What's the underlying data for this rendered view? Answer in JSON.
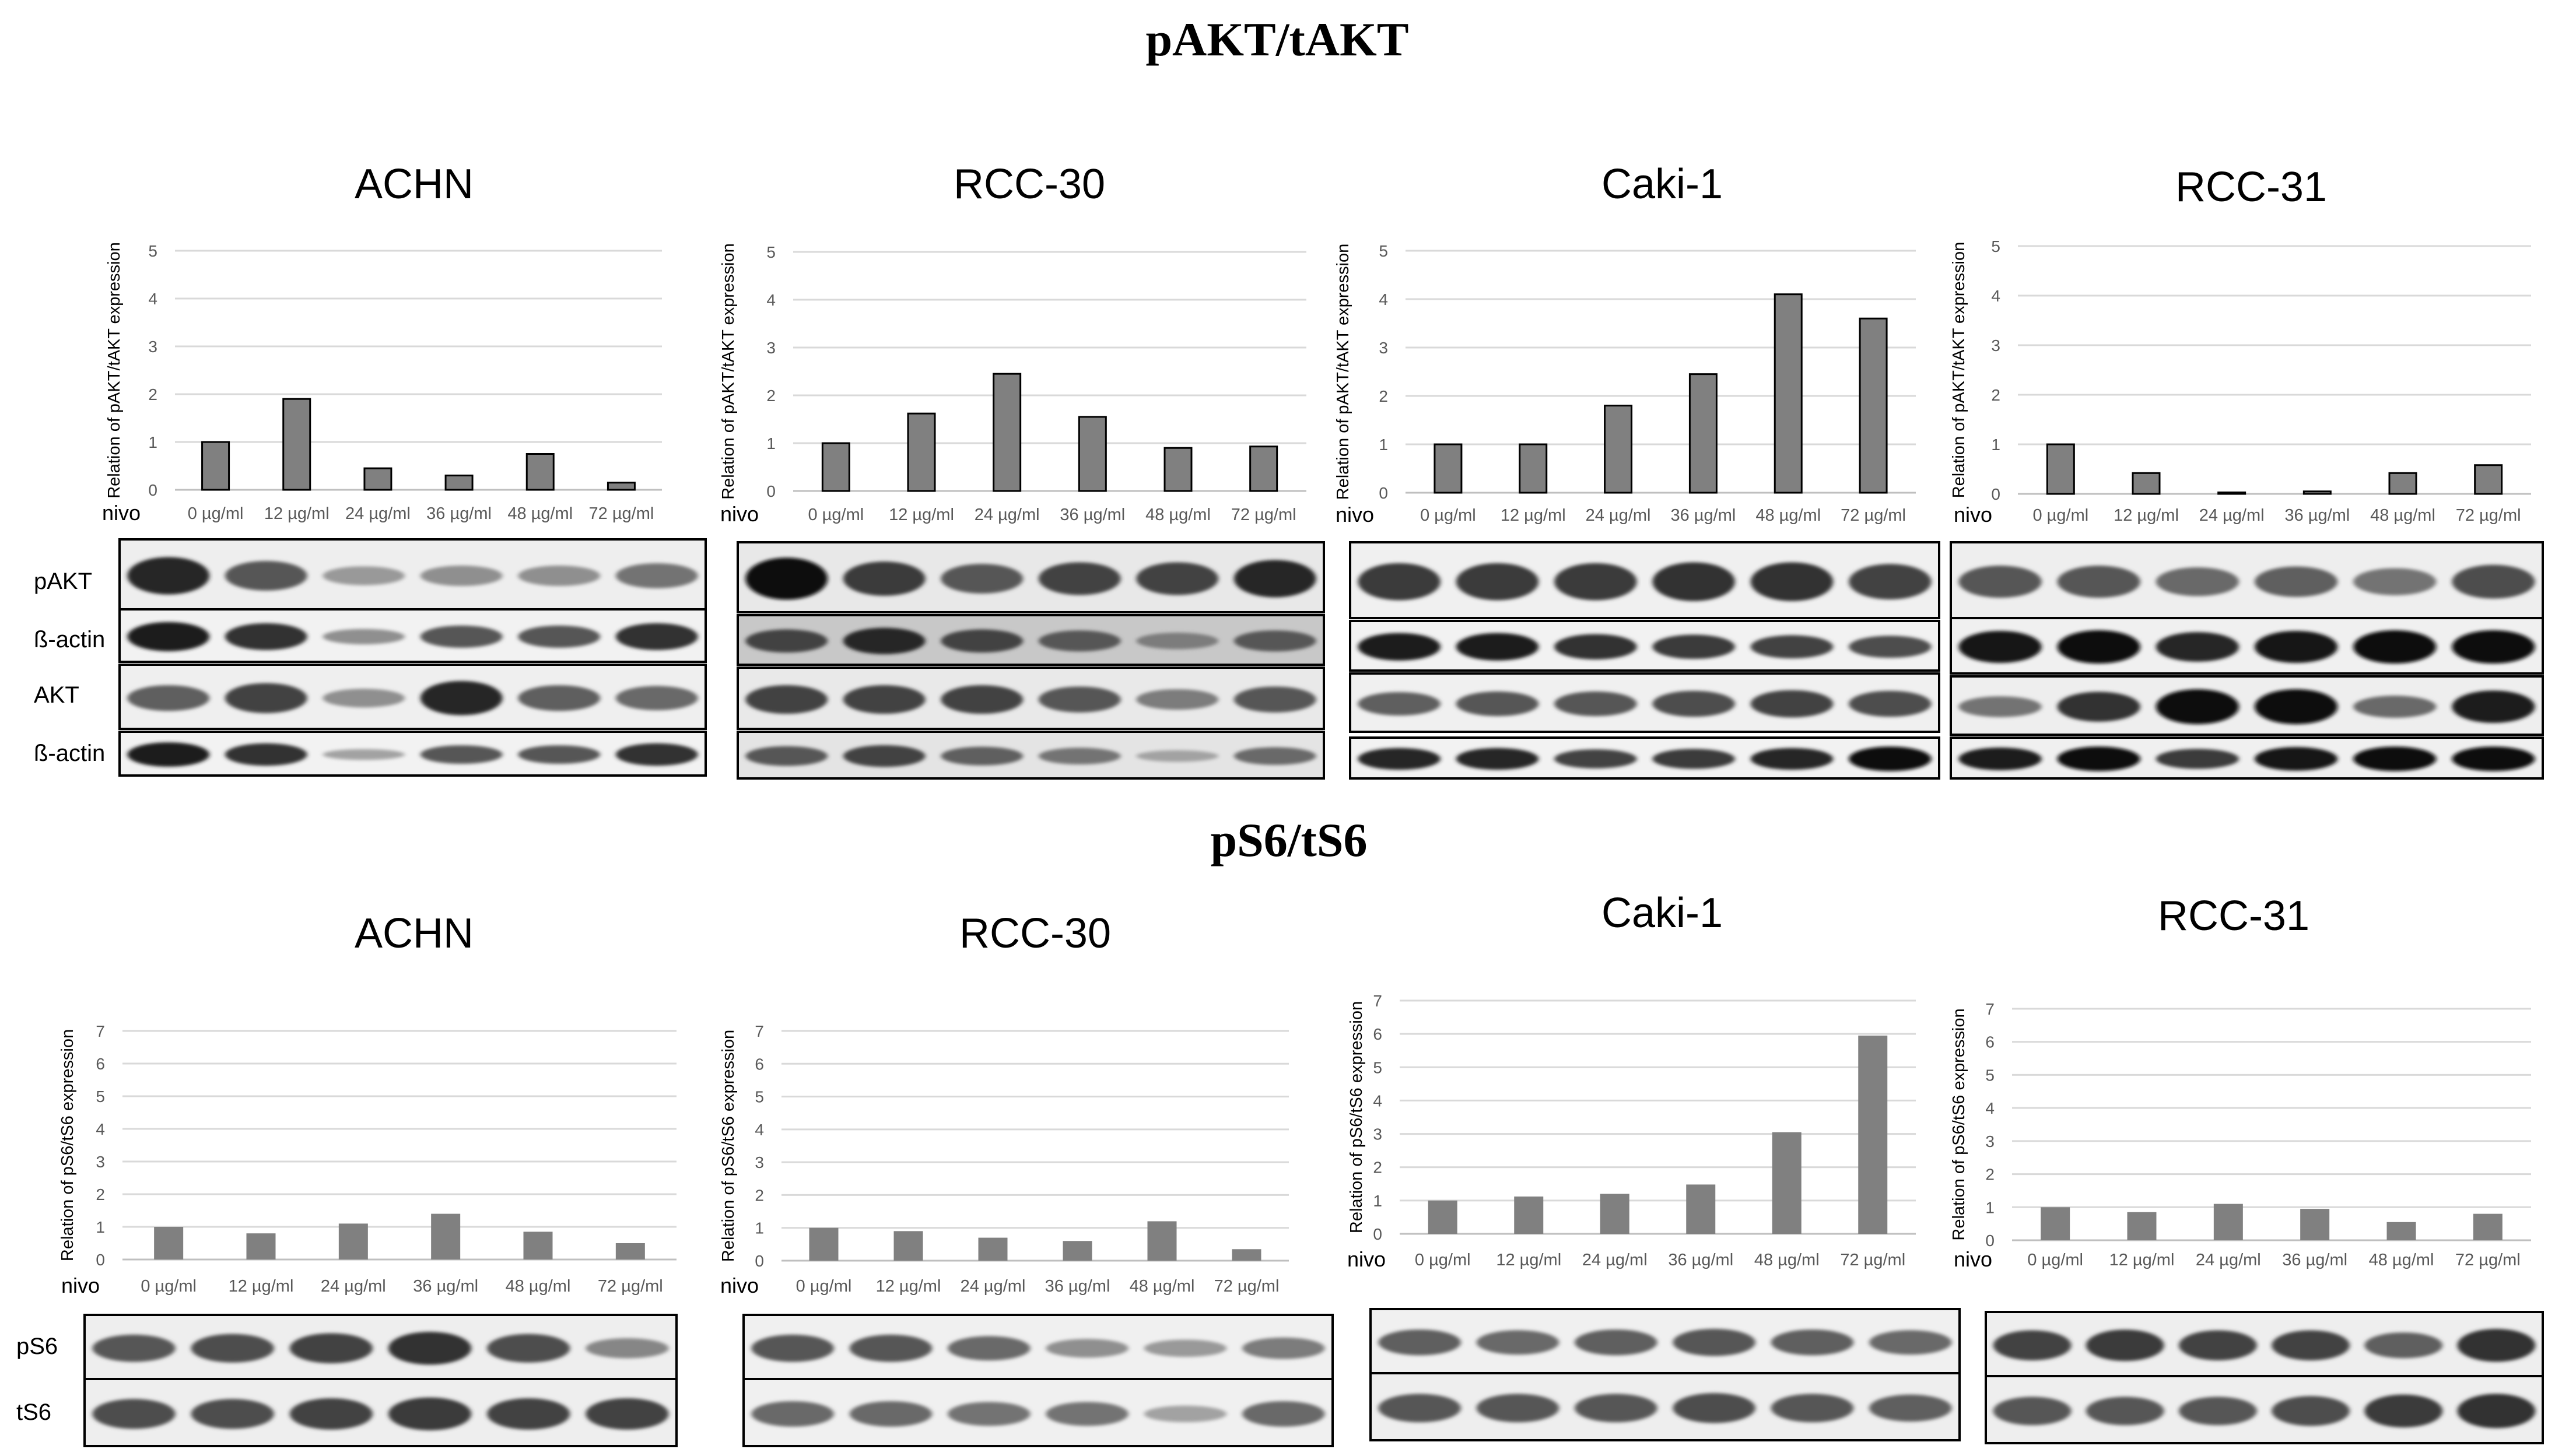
{
  "figure": {
    "section_titles": [
      "pAKT/tAKT",
      "pS6/tS6"
    ],
    "colors": {
      "bar": "#808080",
      "grid": "#d9d9d9",
      "text": "#000000",
      "tick": "#595959"
    }
  },
  "blots": [
    {
      "labels": [
        "pAKT",
        "ß-actin",
        "AKT",
        "ß-actin"
      ]
    },
    {
      "labels": [
        "pS6",
        "tS6"
      ]
    }
  ],
  "chart_data": [
    {
      "type": "bar",
      "title": "ACHN",
      "ylabel": "Relation of pAKT/tAKT expression",
      "xlabel": "nivo",
      "categories": [
        "0 µg/ml",
        "12 µg/ml",
        "24 µg/ml",
        "36 µg/ml",
        "48 µg/ml",
        "72 µg/ml"
      ],
      "values": [
        1.0,
        1.9,
        0.45,
        0.3,
        0.75,
        0.15
      ],
      "ylim": [
        0,
        5
      ],
      "yticks": [
        0,
        1,
        2,
        3,
        4,
        5
      ],
      "bar_outline": true
    },
    {
      "type": "bar",
      "title": "RCC-30",
      "ylabel": "Relation of pAKT/tAKT expression",
      "xlabel": "nivo",
      "categories": [
        "0 µg/ml",
        "12 µg/ml",
        "24 µg/ml",
        "36 µg/ml",
        "48 µg/ml",
        "72 µg/ml"
      ],
      "values": [
        1.0,
        1.62,
        2.45,
        1.55,
        0.9,
        0.93
      ],
      "ylim": [
        0,
        5
      ],
      "yticks": [
        0,
        1,
        2,
        3,
        4,
        5
      ],
      "bar_outline": true
    },
    {
      "type": "bar",
      "title": "Caki-1",
      "ylabel": "Relation of pAKT/tAKT expression",
      "xlabel": "nivo",
      "categories": [
        "0 µg/ml",
        "12 µg/ml",
        "24 µg/ml",
        "36 µg/ml",
        "48 µg/ml",
        "72 µg/ml"
      ],
      "values": [
        1.0,
        1.0,
        1.8,
        2.45,
        4.1,
        3.6
      ],
      "ylim": [
        0,
        5
      ],
      "yticks": [
        0,
        1,
        2,
        3,
        4,
        5
      ],
      "bar_outline": true
    },
    {
      "type": "bar",
      "title": "RCC-31",
      "ylabel": "Relation of pAKT/tAKT expression",
      "xlabel": "nivo",
      "categories": [
        "0 µg/ml",
        "12 µg/ml",
        "24 µg/ml",
        "36 µg/ml",
        "48 µg/ml",
        "72 µg/ml"
      ],
      "values": [
        1.0,
        0.42,
        0.03,
        0.05,
        0.42,
        0.58
      ],
      "ylim": [
        0,
        5
      ],
      "yticks": [
        0,
        1,
        2,
        3,
        4,
        5
      ],
      "bar_outline": true
    },
    {
      "type": "bar",
      "title": "ACHN",
      "ylabel": "Relation of pS6/tS6 expression",
      "xlabel": "nivo",
      "categories": [
        "0 µg/ml",
        "12 µg/ml",
        "24 µg/ml",
        "36 µg/ml",
        "48 µg/ml",
        "72 µg/ml"
      ],
      "values": [
        1.0,
        0.8,
        1.1,
        1.4,
        0.85,
        0.5
      ],
      "ylim": [
        0,
        7
      ],
      "yticks": [
        0,
        1,
        2,
        3,
        4,
        5,
        6,
        7
      ],
      "bar_outline": false
    },
    {
      "type": "bar",
      "title": "RCC-30",
      "ylabel": "Relation of pS6/tS6 expression",
      "xlabel": "nivo",
      "categories": [
        "0 µg/ml",
        "12 µg/ml",
        "24 µg/ml",
        "36 µg/ml",
        "48 µg/ml",
        "72 µg/ml"
      ],
      "values": [
        1.0,
        0.9,
        0.7,
        0.6,
        1.2,
        0.35
      ],
      "ylim": [
        0,
        7
      ],
      "yticks": [
        0,
        1,
        2,
        3,
        4,
        5,
        6,
        7
      ],
      "bar_outline": false
    },
    {
      "type": "bar",
      "title": "Caki-1",
      "ylabel": "Relation of pS6/tS6 expression",
      "xlabel": "nivo",
      "categories": [
        "0 µg/ml",
        "12 µg/ml",
        "24 µg/ml",
        "36 µg/ml",
        "48 µg/ml",
        "72 µg/ml"
      ],
      "values": [
        1.0,
        1.12,
        1.2,
        1.48,
        3.05,
        5.95
      ],
      "ylim": [
        0,
        7
      ],
      "yticks": [
        0,
        1,
        2,
        3,
        4,
        5,
        6,
        7
      ],
      "bar_outline": false
    },
    {
      "type": "bar",
      "title": "RCC-31",
      "ylabel": "Relation of pS6/tS6 expression",
      "xlabel": "nivo",
      "categories": [
        "0 µg/ml",
        "12 µg/ml",
        "24 µg/ml",
        "36 µg/ml",
        "48 µg/ml",
        "72 µg/ml"
      ],
      "values": [
        1.0,
        0.85,
        1.1,
        0.95,
        0.55,
        0.8
      ],
      "ylim": [
        0,
        7
      ],
      "yticks": [
        0,
        1,
        2,
        3,
        4,
        5,
        6,
        7
      ],
      "bar_outline": false
    }
  ]
}
